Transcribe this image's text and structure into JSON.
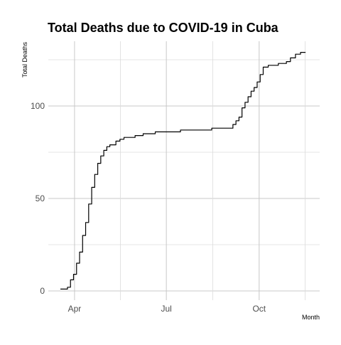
{
  "chart_data": {
    "type": "line",
    "title": "Total Deaths due to COVID-19 in Cuba",
    "xlabel": "Month",
    "ylabel": "Total Deaths",
    "x_tick_labels": [
      "Apr",
      "Jul",
      "Oct"
    ],
    "y_tick_labels": [
      "0",
      "50",
      "100"
    ],
    "xlim": [
      "2020-03-06",
      "2020-11-30"
    ],
    "ylim": [
      -5,
      135
    ],
    "grid": true,
    "line_color": "#000000",
    "series": [
      {
        "x": [
          "2020-03-18",
          "2020-03-22",
          "2020-03-25",
          "2020-03-28",
          "2020-03-31",
          "2020-04-03",
          "2020-04-06",
          "2020-04-09",
          "2020-04-12",
          "2020-04-15",
          "2020-04-18",
          "2020-04-21",
          "2020-04-24",
          "2020-04-27",
          "2020-04-30",
          "2020-05-03",
          "2020-05-06",
          "2020-05-09",
          "2020-05-12",
          "2020-05-16",
          "2020-05-20",
          "2020-05-25",
          "2020-05-31",
          "2020-06-08",
          "2020-06-20",
          "2020-07-01",
          "2020-07-15",
          "2020-08-01",
          "2020-08-15",
          "2020-08-25",
          "2020-09-01",
          "2020-09-05",
          "2020-09-08",
          "2020-09-11",
          "2020-09-14",
          "2020-09-17",
          "2020-09-20",
          "2020-09-23",
          "2020-09-26",
          "2020-09-29",
          "2020-10-02",
          "2020-10-05",
          "2020-10-10",
          "2020-10-20",
          "2020-10-25",
          "2020-10-28",
          "2020-11-01",
          "2020-11-06",
          "2020-11-11",
          "2020-11-16"
        ],
        "y": [
          1,
          1,
          2,
          6,
          9,
          15,
          21,
          30,
          37,
          47,
          56,
          63,
          69,
          73,
          76,
          78,
          79,
          79,
          81,
          82,
          83,
          83,
          84,
          85,
          86,
          86,
          87,
          87,
          88,
          88,
          88,
          90,
          92,
          94,
          99,
          102,
          105,
          108,
          110,
          113,
          117,
          121,
          122,
          123,
          123,
          124,
          126,
          128,
          129,
          129
        ]
      }
    ]
  }
}
